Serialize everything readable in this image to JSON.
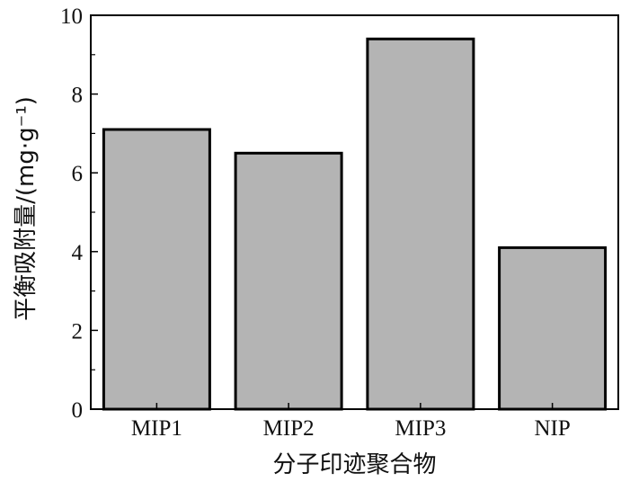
{
  "chart_data": {
    "type": "bar",
    "categories": [
      "MIP1",
      "MIP2",
      "MIP3",
      "NIP"
    ],
    "values": [
      7.1,
      6.5,
      9.4,
      4.1
    ],
    "title": "",
    "xlabel": "分子印迹聚合物",
    "ylabel": "平衡吸附量/(mg·g⁻¹)",
    "ylim": [
      0,
      10
    ],
    "yticks": [
      0,
      2,
      4,
      6,
      8,
      10
    ],
    "grid": false,
    "colors": {
      "bar_fill": "#b4b4b4",
      "bar_stroke": "#000000",
      "axis": "#000000"
    }
  }
}
